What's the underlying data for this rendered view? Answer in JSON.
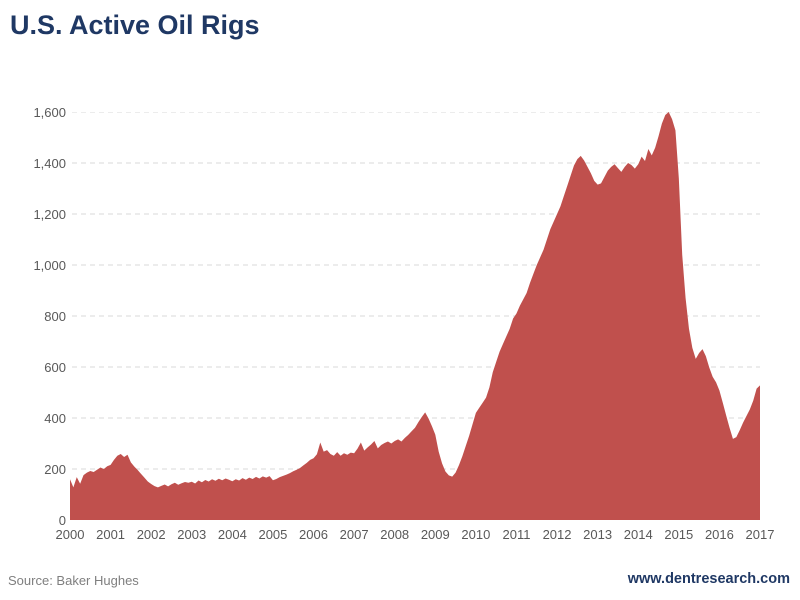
{
  "page": {
    "title": "U.S. Active Oil Rigs",
    "source_note": "Source: Baker Hughes",
    "website": "www.dentresearch.com"
  },
  "colors": {
    "title": "#1f3864",
    "area_fill": "#c0504d",
    "axis_label": "#595959",
    "gridline": "#d9d9d9",
    "source_text": "#7f7f7f",
    "website_text": "#1f3864",
    "background": "#ffffff"
  },
  "chart_data": {
    "type": "area",
    "title": "U.S. Active Oil Rigs",
    "series_name": "U.S. active oil rig count",
    "xlabel": "",
    "ylabel": "",
    "x_tick_labels": [
      "2000",
      "2001",
      "2002",
      "2003",
      "2004",
      "2005",
      "2006",
      "2007",
      "2008",
      "2009",
      "2010",
      "2011",
      "2012",
      "2013",
      "2014",
      "2015",
      "2016",
      "2017"
    ],
    "y_tick_labels": [
      "0",
      "200",
      "400",
      "600",
      "800",
      "1,000",
      "1,200",
      "1,400",
      "1,600"
    ],
    "ylim": [
      0,
      1600
    ],
    "y_tick_step": 200,
    "x_start_year": 2000,
    "x_end_year": 2017,
    "sampling": "monthly",
    "grid": "horizontal-dashed",
    "legend": "none",
    "values": [
      160,
      128,
      168,
      142,
      176,
      186,
      192,
      188,
      197,
      206,
      200,
      211,
      216,
      236,
      252,
      259,
      247,
      256,
      226,
      210,
      196,
      181,
      166,
      151,
      141,
      133,
      128,
      134,
      139,
      132,
      140,
      146,
      138,
      144,
      149,
      146,
      150,
      143,
      155,
      148,
      157,
      151,
      160,
      154,
      162,
      156,
      163,
      158,
      152,
      160,
      155,
      164,
      158,
      166,
      161,
      169,
      163,
      171,
      166,
      172,
      156,
      161,
      168,
      173,
      178,
      184,
      191,
      197,
      204,
      214,
      224,
      236,
      242,
      258,
      304,
      268,
      274,
      259,
      252,
      266,
      252,
      262,
      256,
      264,
      262,
      280,
      304,
      272,
      285,
      296,
      310,
      281,
      294,
      302,
      308,
      300,
      310,
      316,
      308,
      322,
      334,
      348,
      362,
      384,
      404,
      422,
      398,
      368,
      335,
      268,
      222,
      190,
      175,
      170,
      186,
      215,
      250,
      290,
      330,
      375,
      420,
      440,
      460,
      480,
      520,
      580,
      620,
      660,
      690,
      720,
      750,
      790,
      810,
      840,
      865,
      890,
      930,
      965,
      1000,
      1030,
      1060,
      1100,
      1140,
      1170,
      1200,
      1230,
      1270,
      1310,
      1350,
      1390,
      1415,
      1428,
      1410,
      1385,
      1360,
      1330,
      1315,
      1320,
      1345,
      1370,
      1385,
      1395,
      1380,
      1365,
      1385,
      1400,
      1392,
      1378,
      1395,
      1425,
      1408,
      1455,
      1430,
      1460,
      1505,
      1555,
      1588,
      1600,
      1572,
      1528,
      1340,
      1040,
      870,
      750,
      675,
      632,
      655,
      670,
      642,
      598,
      562,
      540,
      508,
      460,
      410,
      362,
      318,
      325,
      352,
      382,
      408,
      434,
      468,
      515,
      528
    ]
  }
}
